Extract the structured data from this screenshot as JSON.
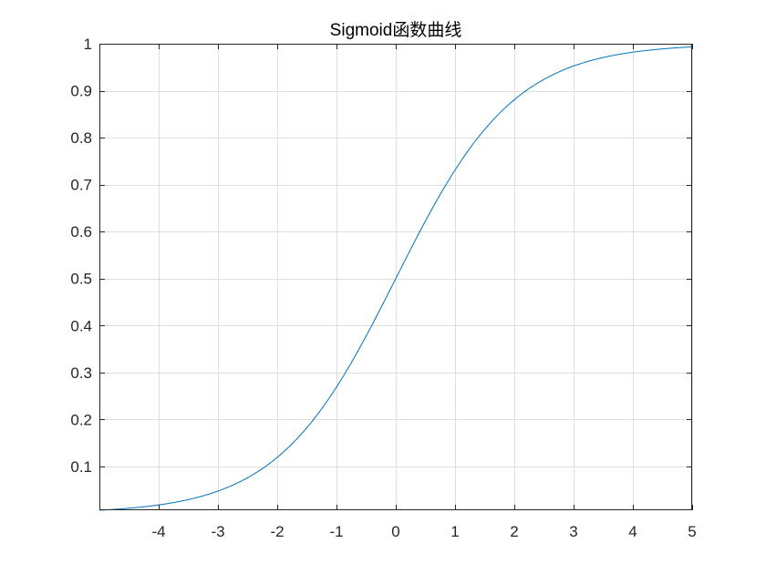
{
  "chart_data": {
    "type": "line",
    "title": "Sigmoid函数曲线",
    "xlabel": "",
    "ylabel": "",
    "function": "1/(1+exp(-x))",
    "xlim": [
      -5,
      5
    ],
    "ylim": [
      0.006692851,
      1
    ],
    "x_ticks": [
      -4,
      -3,
      -2,
      -1,
      0,
      1,
      2,
      3,
      4,
      5
    ],
    "x_tick_labels": [
      "-4",
      "-3",
      "-2",
      "-1",
      "0",
      "1",
      "2",
      "3",
      "4",
      "5"
    ],
    "y_ticks": [
      0.1,
      0.2,
      0.3,
      0.4,
      0.5,
      0.6,
      0.7,
      0.8,
      0.9,
      1
    ],
    "y_tick_labels": [
      "0.1",
      "0.2",
      "0.3",
      "0.4",
      "0.5",
      "0.6",
      "0.7",
      "0.8",
      "0.9",
      "1"
    ],
    "grid": true,
    "series": [
      {
        "color": "#0072bd",
        "x": [
          -5,
          -4.5,
          -4,
          -3.5,
          -3,
          -2.5,
          -2,
          -1.5,
          -1,
          -0.5,
          0,
          0.5,
          1,
          1.5,
          2,
          2.5,
          3,
          3.5,
          4,
          4.5,
          5
        ],
        "y": [
          0.0067,
          0.011,
          0.018,
          0.0293,
          0.0474,
          0.0759,
          0.1192,
          0.1824,
          0.2689,
          0.3775,
          0.5,
          0.6225,
          0.7311,
          0.8176,
          0.8808,
          0.9241,
          0.9526,
          0.9707,
          0.982,
          0.989,
          0.9933
        ]
      }
    ]
  }
}
